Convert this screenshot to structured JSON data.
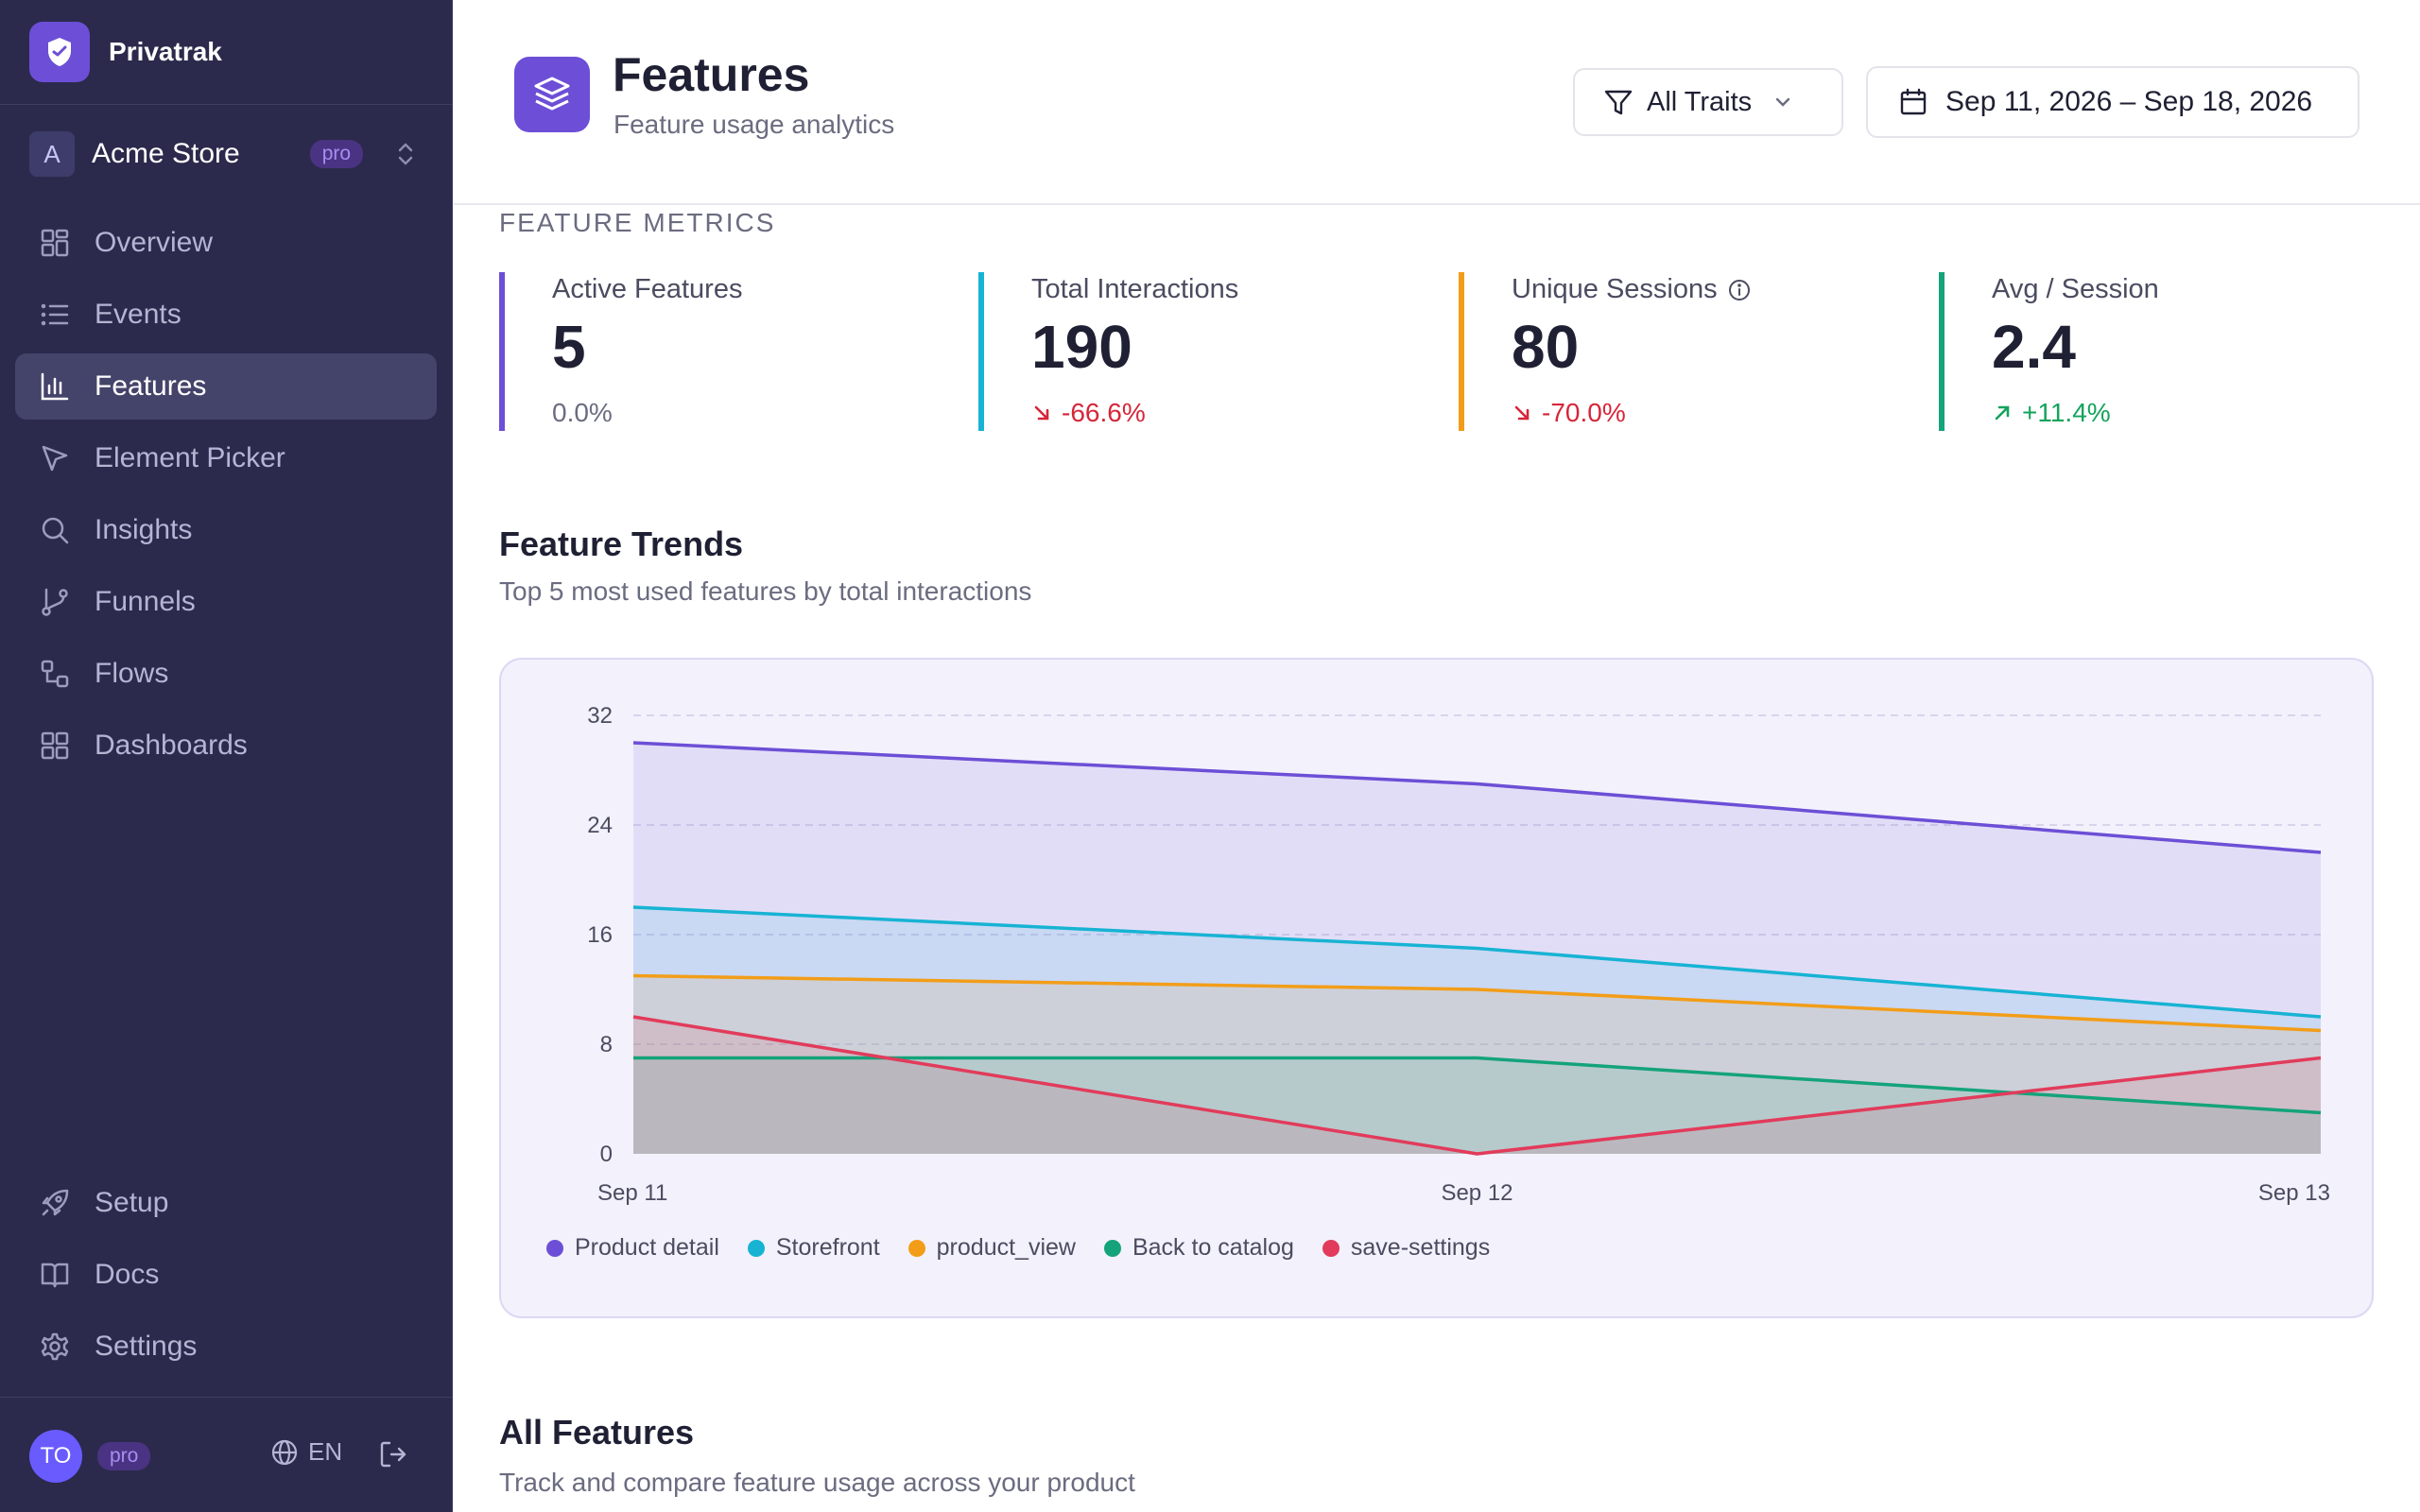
{
  "app": {
    "name": "Privatrak"
  },
  "workspace": {
    "initial": "A",
    "name": "Acme Store",
    "badge": "pro"
  },
  "nav": {
    "main": [
      {
        "label": "Overview",
        "icon": "grid-icon",
        "active": false
      },
      {
        "label": "Events",
        "icon": "list-icon",
        "active": false
      },
      {
        "label": "Features",
        "icon": "bar-chart-icon",
        "active": true
      },
      {
        "label": "Element Picker",
        "icon": "cursor-icon",
        "active": false
      },
      {
        "label": "Insights",
        "icon": "search-icon",
        "active": false
      },
      {
        "label": "Funnels",
        "icon": "git-branch-icon",
        "active": false
      },
      {
        "label": "Flows",
        "icon": "flow-icon",
        "active": false
      },
      {
        "label": "Dashboards",
        "icon": "dashboard-icon",
        "active": false
      }
    ],
    "bottom": [
      {
        "label": "Setup",
        "icon": "rocket-icon"
      },
      {
        "label": "Docs",
        "icon": "book-icon"
      },
      {
        "label": "Settings",
        "icon": "gear-icon"
      }
    ]
  },
  "footer": {
    "user_initials": "TO",
    "badge": "pro",
    "language": "EN"
  },
  "header": {
    "title": "Features",
    "subtitle": "Feature usage analytics",
    "traits_label": "All Traits",
    "date_range": "Sep 11, 2026 – Sep 18, 2026"
  },
  "metrics": {
    "section_label": "FEATURE METRICS",
    "items": [
      {
        "label": "Active Features",
        "value": "5",
        "delta": "0.0%",
        "trend": "neutral",
        "color": "#6c4fd6",
        "info": false
      },
      {
        "label": "Total Interactions",
        "value": "190",
        "delta": "-66.6%",
        "trend": "down",
        "color": "#17b3d3",
        "info": false
      },
      {
        "label": "Unique Sessions",
        "value": "80",
        "delta": "-70.0%",
        "trend": "down",
        "color": "#f29d18",
        "info": true
      },
      {
        "label": "Avg / Session",
        "value": "2.4",
        "delta": "+11.4%",
        "trend": "up",
        "color": "#14a37a",
        "info": false
      }
    ]
  },
  "trends": {
    "title": "Feature Trends",
    "subtitle": "Top 5 most used features by total interactions"
  },
  "chart_data": {
    "type": "area",
    "x": [
      "Sep 11",
      "Sep 12",
      "Sep 13"
    ],
    "ylim": [
      0,
      32
    ],
    "yticks": [
      0,
      8,
      16,
      24,
      32
    ],
    "grid": true,
    "legend_position": "bottom-left",
    "series": [
      {
        "name": "Product detail",
        "color": "#6c4fd6",
        "values": [
          30,
          27,
          22
        ]
      },
      {
        "name": "Storefront",
        "color": "#17b3d3",
        "values": [
          18,
          15,
          10
        ]
      },
      {
        "name": "product_view",
        "color": "#f29d18",
        "values": [
          13,
          12,
          9
        ]
      },
      {
        "name": "Back to catalog",
        "color": "#14a37a",
        "values": [
          7,
          7,
          3
        ]
      },
      {
        "name": "save-settings",
        "color": "#e23b5b",
        "values": [
          10,
          0,
          7
        ]
      }
    ]
  },
  "all_features": {
    "title": "All Features",
    "subtitle": "Track and compare feature usage across your product"
  }
}
